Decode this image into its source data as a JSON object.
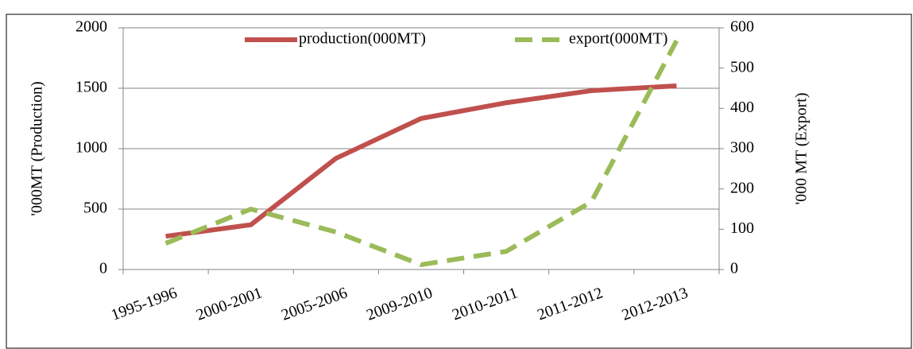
{
  "chart_data": {
    "type": "line",
    "categories": [
      "1995-1996",
      "2000-2001",
      "2005-2006",
      "2009-2010",
      "2010-2011",
      "2011-2012",
      "2012-2013"
    ],
    "series": [
      {
        "name": "production(000MT)",
        "color": "#c0504d",
        "values": [
          275,
          370,
          920,
          1250,
          1380,
          1480,
          1520
        ]
      },
      {
        "name": "export(000MT)",
        "color": "#9bbb59",
        "axis": "y2",
        "dashed": true,
        "values": [
          65,
          150,
          93,
          12,
          45,
          168,
          568
        ]
      }
    ],
    "ylabel": "'000MT (Production)",
    "y2label": "'000 MT (Export)",
    "ylim": [
      0,
      2000
    ],
    "yticks": [
      0,
      500,
      1000,
      1500,
      2000
    ],
    "y2lim": [
      0,
      600
    ],
    "y2ticks": [
      0,
      100,
      200,
      300,
      400,
      500,
      600
    ],
    "grid": true,
    "legend": "top"
  }
}
